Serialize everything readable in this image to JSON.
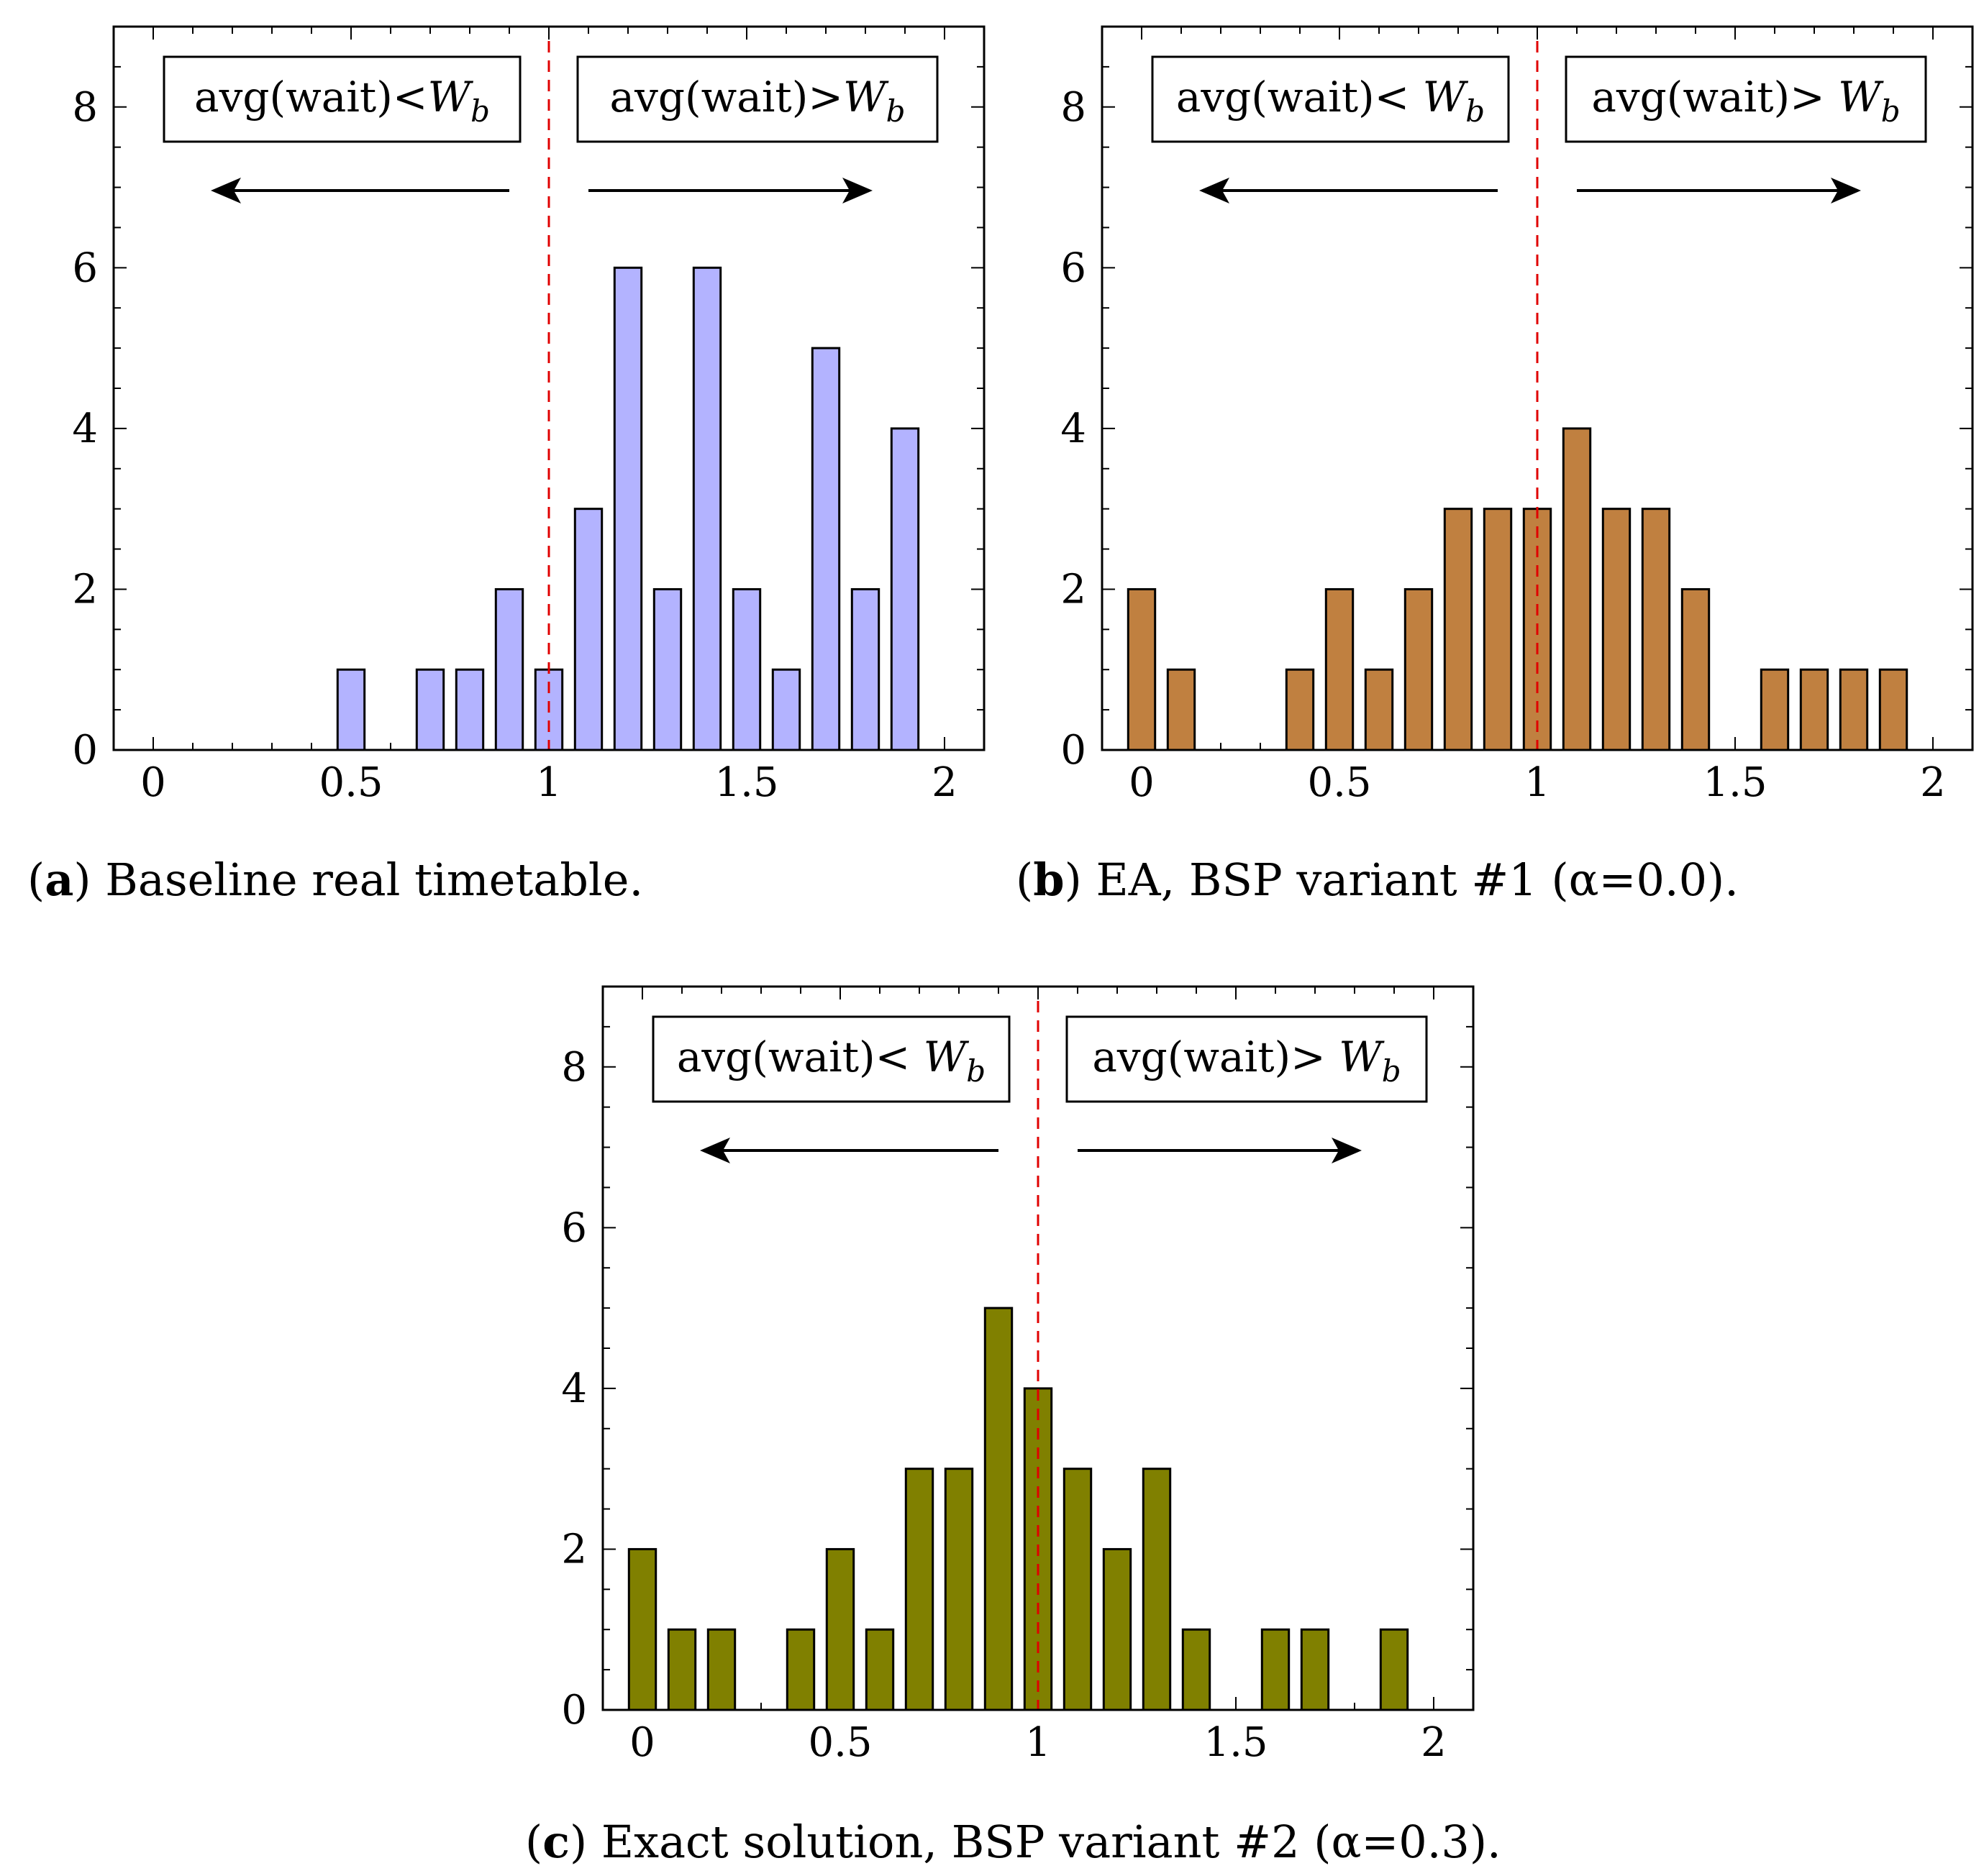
{
  "chart_data": [
    {
      "type": "bar",
      "panel": "a",
      "caption_tag": "a",
      "caption_text": "Baseline real timetable.",
      "color": "#b3b3ff",
      "x": [
        0,
        0.1,
        0.2,
        0.3,
        0.4,
        0.5,
        0.6,
        0.7,
        0.8,
        0.9,
        1.0,
        1.1,
        1.2,
        1.3,
        1.4,
        1.5,
        1.6,
        1.7,
        1.8,
        1.9
      ],
      "values": [
        0,
        0,
        0,
        0,
        0,
        1,
        0,
        1,
        1,
        2,
        1,
        3,
        6,
        2,
        6,
        2,
        1,
        5,
        2,
        4
      ],
      "xlim": [
        -0.1,
        2.1
      ],
      "ylim": [
        0,
        9
      ],
      "xticks": [
        "0",
        "0.5",
        "1",
        "1.5",
        "2"
      ],
      "yticks": [
        "0",
        "2",
        "4",
        "6",
        "8"
      ],
      "threshold_x": 1.0,
      "left_label": "avg(wait)<",
      "right_label": "avg(wait)>",
      "w_symbol": "W",
      "w_subscript": "b"
    },
    {
      "type": "bar",
      "panel": "b",
      "caption_tag": "b",
      "caption_text": "EA, BSP variant #1 (α=0.0).",
      "color": "#c08040",
      "x": [
        0,
        0.1,
        0.2,
        0.3,
        0.4,
        0.5,
        0.6,
        0.7,
        0.8,
        0.9,
        1.0,
        1.1,
        1.2,
        1.3,
        1.4,
        1.5,
        1.6,
        1.7,
        1.8,
        1.9
      ],
      "values": [
        2,
        1,
        0,
        0,
        1,
        2,
        1,
        2,
        3,
        3,
        3,
        4,
        3,
        3,
        2,
        0,
        1,
        1,
        1,
        1
      ],
      "xlim": [
        -0.1,
        2.1
      ],
      "ylim": [
        0,
        9
      ],
      "xticks": [
        "0",
        "0.5",
        "1",
        "1.5",
        "2"
      ],
      "yticks": [
        "0",
        "2",
        "4",
        "6",
        "8"
      ],
      "threshold_x": 1.0,
      "left_label": "avg(wait)< ",
      "right_label": "avg(wait)> ",
      "w_symbol": "W",
      "w_subscript": "b"
    },
    {
      "type": "bar",
      "panel": "c",
      "caption_tag": "c",
      "caption_text": "Exact solution, BSP variant #2 (α=0.3).",
      "color": "#808000",
      "x": [
        0,
        0.1,
        0.2,
        0.3,
        0.4,
        0.5,
        0.6,
        0.7,
        0.8,
        0.9,
        1.0,
        1.1,
        1.2,
        1.3,
        1.4,
        1.5,
        1.6,
        1.7,
        1.8,
        1.9
      ],
      "values": [
        2,
        1,
        1,
        0,
        1,
        2,
        1,
        3,
        3,
        5,
        4,
        3,
        2,
        3,
        1,
        0,
        1,
        1,
        0,
        1
      ],
      "xlim": [
        -0.1,
        2.1
      ],
      "ylim": [
        0,
        9
      ],
      "xticks": [
        "0",
        "0.5",
        "1",
        "1.5",
        "2"
      ],
      "yticks": [
        "0",
        "2",
        "4",
        "6",
        "8"
      ],
      "threshold_x": 1.0,
      "left_label": "avg(wait)< ",
      "right_label": "avg(wait)> ",
      "w_symbol": "W",
      "w_subscript": "b"
    }
  ]
}
